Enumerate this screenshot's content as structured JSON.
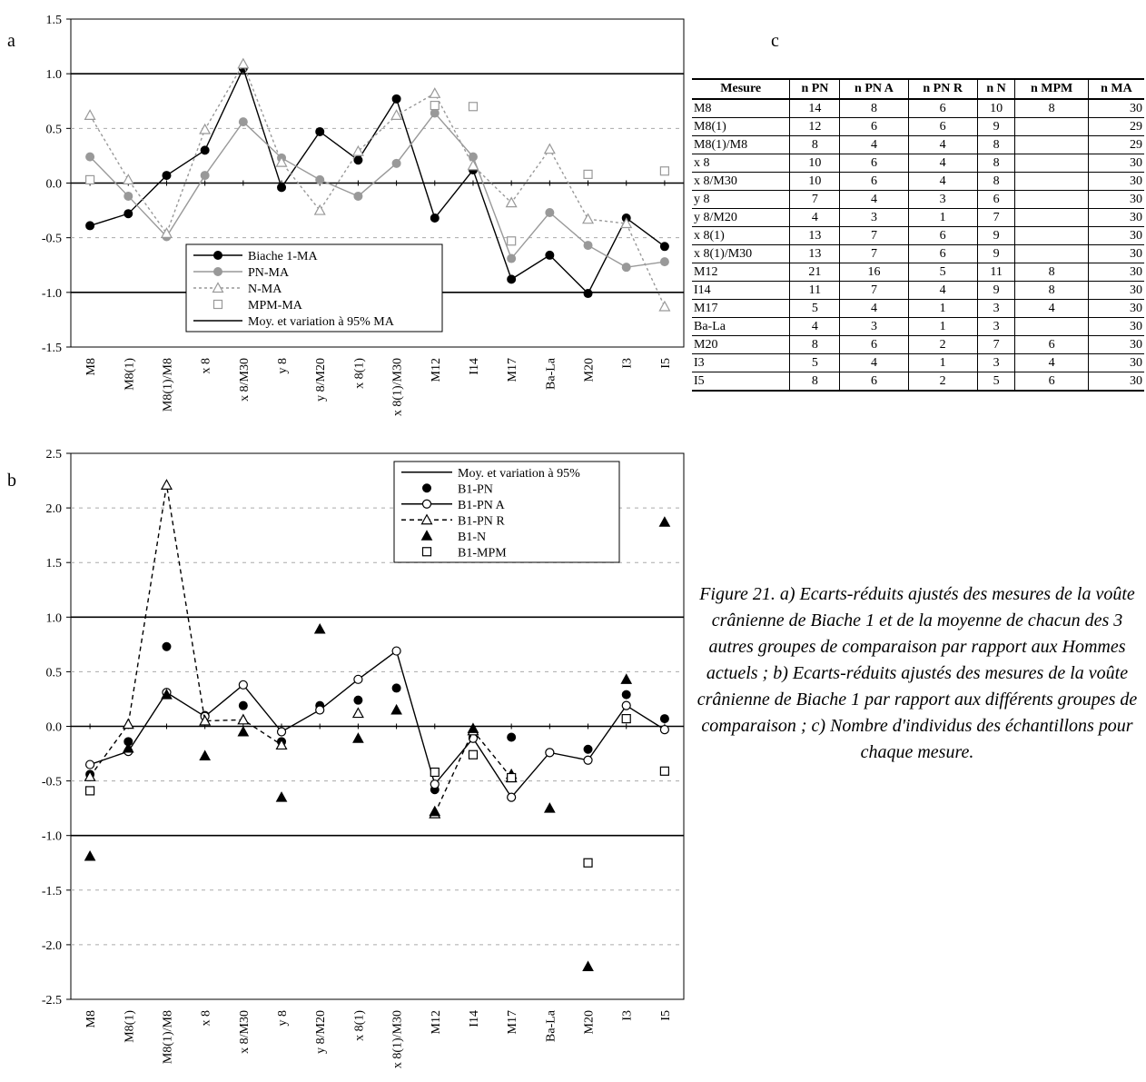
{
  "panels": {
    "a": "a",
    "b": "b",
    "c": "c"
  },
  "chart_data": [
    {
      "type": "line",
      "panel": "a",
      "categories": [
        "M8",
        "M8(1)",
        "M8(1)/M8",
        "x 8",
        "x 8/M30",
        "y 8",
        "y 8/M20",
        "x 8(1)",
        "x 8(1)/M30",
        "M12",
        "I14",
        "M17",
        "Ba-La",
        "M20",
        "I3",
        "I5"
      ],
      "ylim": [
        -1.5,
        1.5
      ],
      "yticks": [
        "1.5",
        "1.0",
        "0.5",
        "0.0",
        "-0.5",
        "-1.0",
        "-1.5"
      ],
      "grid": "dashed gridlines at ±0.5, ±1.5",
      "reference_lines": [
        0,
        1.0,
        -1.0
      ],
      "legend_position": "center-left",
      "series": [
        {
          "name": "Biache 1-MA",
          "style": "line-filled-circle",
          "color": "#000000",
          "values": [
            -0.39,
            -0.28,
            0.07,
            0.3,
            1.05,
            -0.04,
            0.47,
            0.21,
            0.77,
            -0.32,
            0.12,
            -0.88,
            -0.66,
            -1.01,
            -0.32,
            -0.58
          ]
        },
        {
          "name": "PN-MA",
          "style": "line-filled-circle",
          "color": "#999999",
          "values": [
            0.24,
            -0.12,
            -0.49,
            0.07,
            0.56,
            0.23,
            0.03,
            -0.12,
            0.18,
            0.64,
            0.24,
            -0.69,
            -0.27,
            -0.57,
            -0.77,
            -0.72
          ]
        },
        {
          "name": "N-MA",
          "style": "dotted-open-triangle",
          "color": "#999999",
          "values": [
            0.62,
            0.03,
            -0.46,
            0.49,
            1.09,
            0.19,
            -0.25,
            0.29,
            0.62,
            0.82,
            0.16,
            -0.18,
            0.31,
            -0.33,
            -0.37,
            -1.13
          ]
        },
        {
          "name": "MPM-MA",
          "style": "open-square",
          "color": "#999999",
          "values": [
            0.03,
            null,
            null,
            null,
            null,
            null,
            null,
            null,
            null,
            0.71,
            0.7,
            -0.53,
            null,
            0.08,
            null,
            0.11
          ]
        },
        {
          "name": "Moy. et variation à 95% MA",
          "style": "reference-line",
          "color": "#000000"
        }
      ]
    },
    {
      "type": "scatter",
      "panel": "b",
      "categories": [
        "M8",
        "M8(1)",
        "M8(1)/M8",
        "x 8",
        "x 8/M30",
        "y 8",
        "y 8/M20",
        "x 8(1)",
        "x 8(1)/M30",
        "M12",
        "I14",
        "M17",
        "Ba-La",
        "M20",
        "I3",
        "I5"
      ],
      "ylim": [
        -2.5,
        2.5
      ],
      "yticks": [
        "2.5",
        "2.0",
        "1.5",
        "1.0",
        "0.5",
        "0.0",
        "-0.5",
        "-1.0",
        "-1.5",
        "-2.0",
        "-2.5"
      ],
      "grid": "dashed gridlines at every 0.5",
      "reference_lines": [
        0,
        1.0,
        -1.0
      ],
      "legend_position": "top-right",
      "series": [
        {
          "name": "Moy. et variation à 95%",
          "style": "reference-line",
          "color": "#000000"
        },
        {
          "name": "B1-PN",
          "style": "filled-circle",
          "color": "#000000",
          "values": [
            -0.44,
            -0.14,
            0.73,
            0.1,
            0.19,
            -0.14,
            0.19,
            0.24,
            0.35,
            -0.58,
            -0.1,
            -0.1,
            -0.24,
            -0.21,
            0.29,
            0.07
          ]
        },
        {
          "name": "B1-PN A",
          "style": "line-open-circle",
          "color": "#000000",
          "values": [
            -0.35,
            -0.23,
            0.31,
            0.09,
            0.38,
            -0.05,
            0.15,
            0.43,
            0.69,
            -0.53,
            -0.11,
            -0.65,
            -0.24,
            -0.31,
            0.19,
            -0.03
          ]
        },
        {
          "name": "B1-PN R",
          "style": "dashed-open-triangle",
          "color": "#000000",
          "values": [
            -0.46,
            0.02,
            2.21,
            0.05,
            0.06,
            -0.17,
            null,
            0.12,
            null,
            -0.8,
            -0.04,
            -0.47,
            null,
            null,
            null,
            null
          ]
        },
        {
          "name": "B1-N",
          "style": "filled-triangle",
          "color": "#000000",
          "values": [
            -1.19,
            -0.2,
            0.29,
            -0.27,
            -0.05,
            -0.65,
            0.89,
            -0.11,
            0.15,
            -0.78,
            -0.02,
            -0.44,
            -0.75,
            -2.2,
            0.43,
            1.87
          ]
        },
        {
          "name": "B1-MPM",
          "style": "open-square",
          "color": "#000000",
          "values": [
            -0.59,
            null,
            null,
            null,
            null,
            null,
            null,
            null,
            null,
            -0.42,
            -0.26,
            -0.47,
            null,
            -1.25,
            0.07,
            -0.41
          ]
        }
      ]
    },
    {
      "type": "table",
      "panel": "c",
      "columns": [
        "Mesure",
        "n PN",
        "n PN A",
        "n PN R",
        "n N",
        "n MPM",
        "n MA"
      ],
      "rows": [
        [
          "M8",
          "14",
          "8",
          "6",
          "10",
          "8",
          "30"
        ],
        [
          "M8(1)",
          "12",
          "6",
          "6",
          "9",
          "",
          "29"
        ],
        [
          "M8(1)/M8",
          "8",
          "4",
          "4",
          "8",
          "",
          "29"
        ],
        [
          "x 8",
          "10",
          "6",
          "4",
          "8",
          "",
          "30"
        ],
        [
          "x 8/M30",
          "10",
          "6",
          "4",
          "8",
          "",
          "30"
        ],
        [
          "y 8",
          "7",
          "4",
          "3",
          "6",
          "",
          "30"
        ],
        [
          "y 8/M20",
          "4",
          "3",
          "1",
          "7",
          "",
          "30"
        ],
        [
          "x 8(1)",
          "13",
          "7",
          "6",
          "9",
          "",
          "30"
        ],
        [
          "x 8(1)/M30",
          "13",
          "7",
          "6",
          "9",
          "",
          "30"
        ],
        [
          "M12",
          "21",
          "16",
          "5",
          "11",
          "8",
          "30"
        ],
        [
          "I14",
          "11",
          "7",
          "4",
          "9",
          "8",
          "30"
        ],
        [
          "M17",
          "5",
          "4",
          "1",
          "3",
          "4",
          "30"
        ],
        [
          "Ba-La",
          "4",
          "3",
          "1",
          "3",
          "",
          "30"
        ],
        [
          "M20",
          "8",
          "6",
          "2",
          "7",
          "6",
          "30"
        ],
        [
          "I3",
          "5",
          "4",
          "1",
          "3",
          "4",
          "30"
        ],
        [
          "I5",
          "8",
          "6",
          "2",
          "5",
          "6",
          "30"
        ]
      ]
    }
  ],
  "caption": "Figure 21. a) Ecarts-réduits ajustés des mesures de la voûte crânienne de Biache 1 et de la moyenne de chacun des 3 autres groupes de comparaison par rapport aux Hommes actuels ; b) Ecarts-réduits ajustés des mesures de la voûte crânienne de Biache 1 par rapport aux différents groupes de comparaison ; c) Nombre d'individus des échantillons pour chaque mesure."
}
